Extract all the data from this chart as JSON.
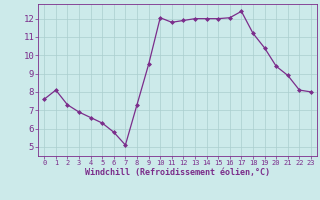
{
  "x": [
    0,
    1,
    2,
    3,
    4,
    5,
    6,
    7,
    8,
    9,
    10,
    11,
    12,
    13,
    14,
    15,
    16,
    17,
    18,
    19,
    20,
    21,
    22,
    23
  ],
  "y": [
    7.6,
    8.1,
    7.3,
    6.9,
    6.6,
    6.3,
    5.8,
    5.1,
    7.3,
    9.5,
    12.05,
    11.8,
    11.9,
    12.0,
    12.0,
    12.0,
    12.05,
    12.4,
    11.2,
    10.4,
    9.4,
    8.9,
    8.1,
    8.0
  ],
  "line_color": "#7b2d8b",
  "marker": "D",
  "marker_size": 2.0,
  "bg_color": "#cceaea",
  "grid_color": "#aacece",
  "xlabel": "Windchill (Refroidissement éolien,°C)",
  "xlabel_color": "#7b2d8b",
  "tick_color": "#7b2d8b",
  "axis_color": "#7b2d8b",
  "xlim": [
    -0.5,
    23.5
  ],
  "ylim": [
    4.5,
    12.8
  ],
  "yticks": [
    5,
    6,
    7,
    8,
    9,
    10,
    11,
    12
  ],
  "xtick_labels": [
    "0",
    "1",
    "2",
    "3",
    "4",
    "5",
    "6",
    "7",
    "8",
    "9",
    "10",
    "11",
    "12",
    "13",
    "14",
    "15",
    "16",
    "17",
    "18",
    "19",
    "20",
    "21",
    "22",
    "23"
  ]
}
